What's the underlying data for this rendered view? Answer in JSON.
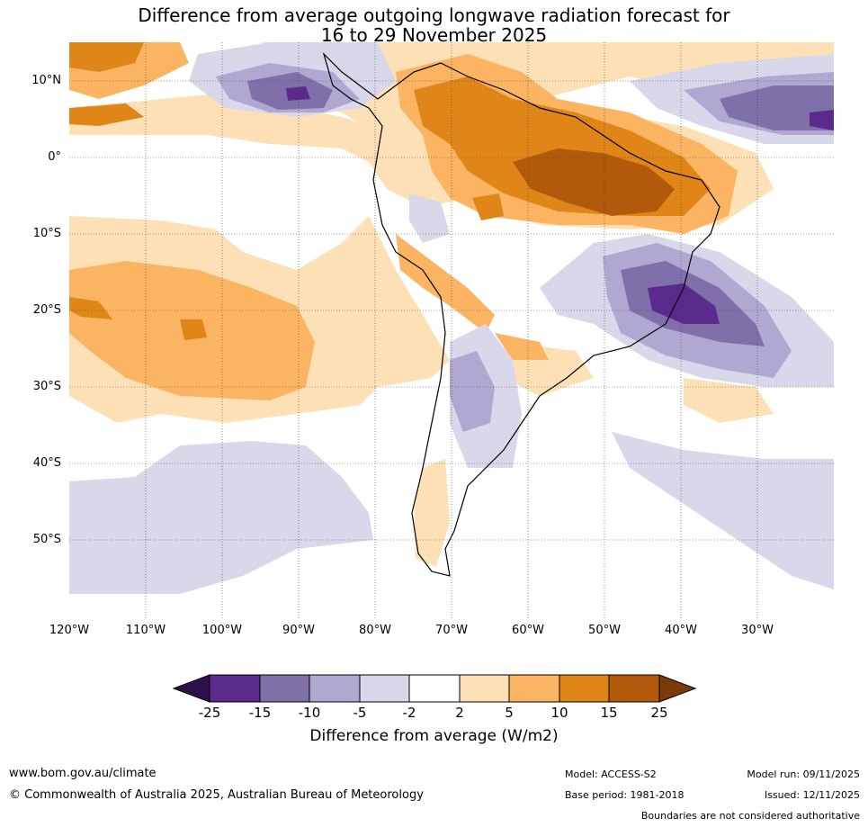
{
  "title": {
    "line1": "Difference from average outgoing longwave radiation forecast for",
    "line2": "16 to 29 November 2025"
  },
  "map": {
    "latitude_labels": [
      "10°N",
      "0°",
      "10°S",
      "20°S",
      "30°S",
      "40°S",
      "50°S"
    ],
    "longitude_labels": [
      "120°W",
      "110°W",
      "100°W",
      "90°W",
      "80°W",
      "70°W",
      "60°W",
      "50°W",
      "40°W",
      "30°W"
    ],
    "extent": {
      "lon_min": -120,
      "lon_max": -20,
      "lat_min": -60,
      "lat_max": 15
    }
  },
  "legend": {
    "ticks": [
      "-25",
      "-15",
      "-10",
      "-5",
      "-2",
      "2",
      "5",
      "10",
      "15",
      "25"
    ],
    "colors": [
      "#2e0f4a",
      "#5a2a8c",
      "#8070aa",
      "#b0a8d0",
      "#d8d8ea",
      "#ffffff",
      "#fde0b5",
      "#fbb562",
      "#e08518",
      "#b3590b",
      "#7a3a0a"
    ],
    "label": "Difference from average (W/m2)"
  },
  "footer": {
    "website": "www.bom.gov.au/climate",
    "copyright": "© Commonwealth of Australia 2025, Australian Bureau of Meteorology",
    "model": "Model: ACCESS-S2",
    "base_period": "Base period: 1981-2018",
    "model_run": "Model run: 09/11/2025",
    "issued": "Issued: 12/11/2025",
    "disclaimer": "Boundaries are not considered authoritative"
  }
}
